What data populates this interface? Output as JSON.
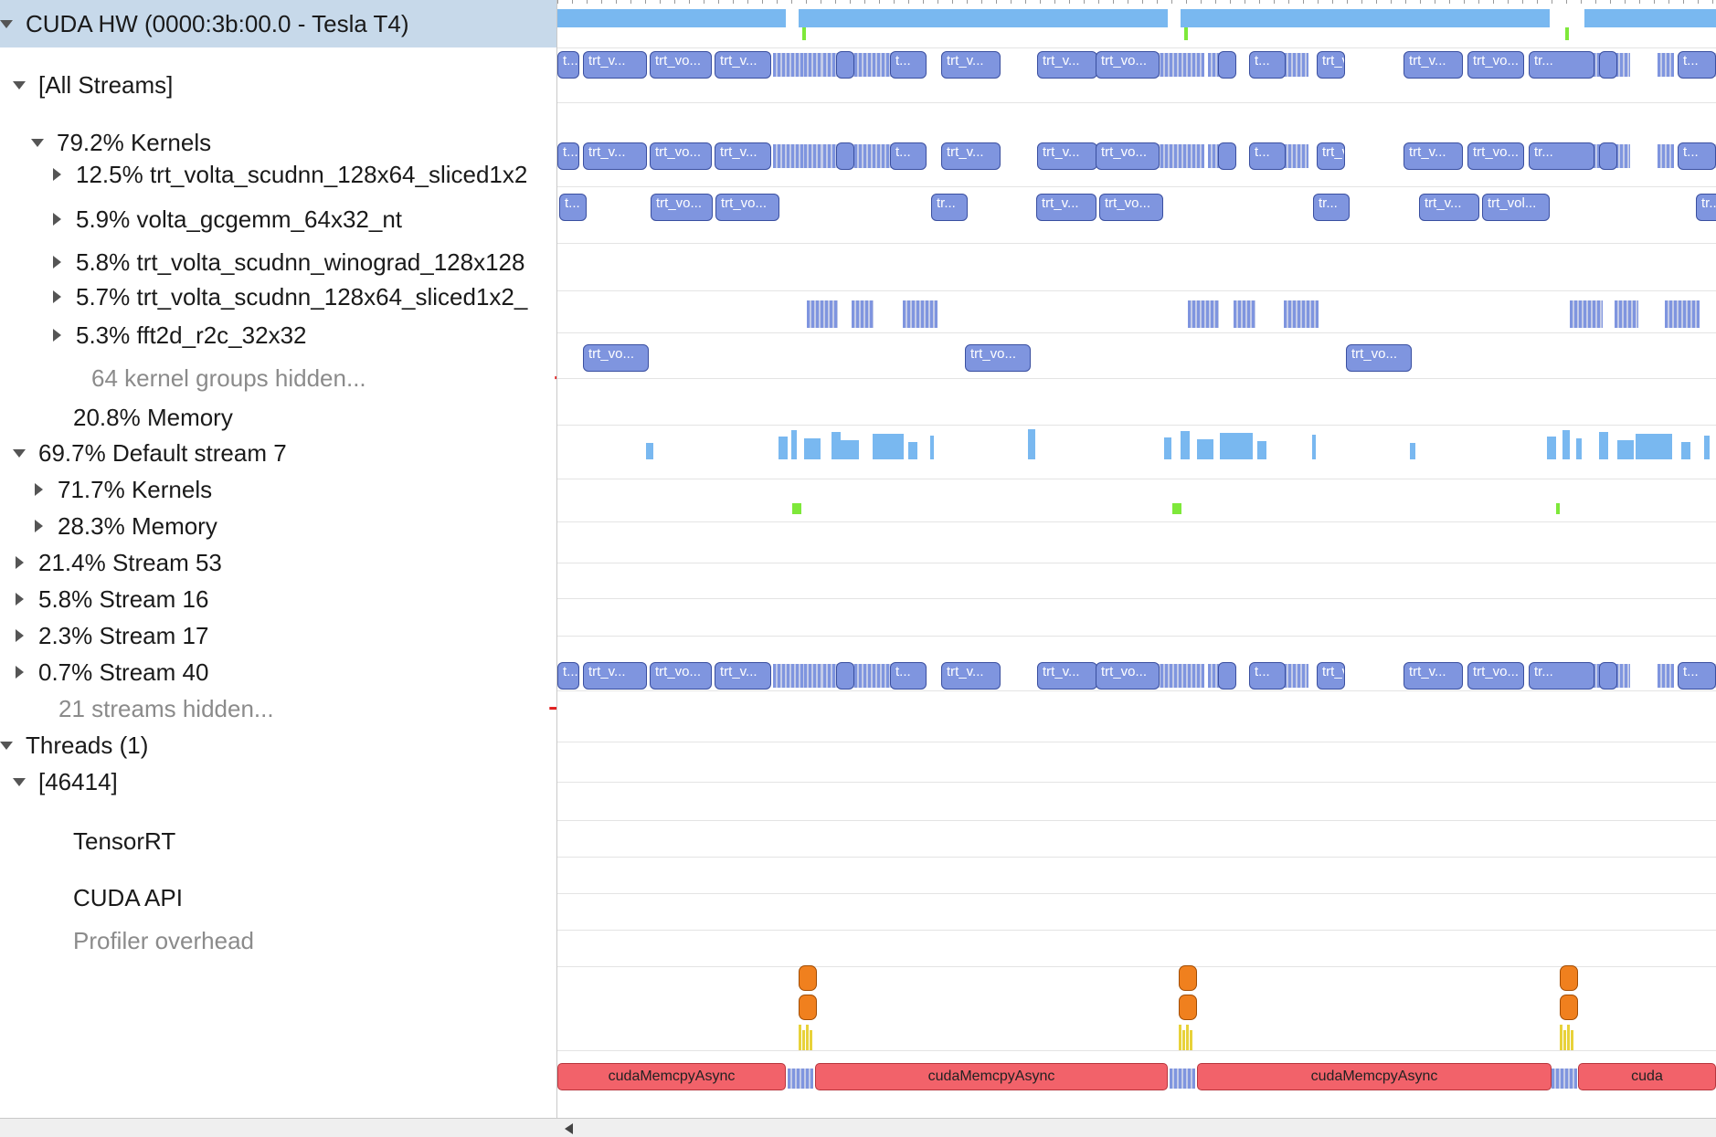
{
  "tree": {
    "rows": [
      {
        "label": "CUDA HW (0000:3b:00.0 - Tesla T4)",
        "arrow": "down",
        "indent": 0,
        "selected": true
      },
      {
        "label": "[All Streams]",
        "arrow": "down",
        "indent": 14
      },
      {
        "label": "79.2% Kernels",
        "arrow": "down",
        "indent": 34,
        "actions": "expand"
      },
      {
        "label": "12.5% trt_volta_scudnn_128x64_sliced1x2",
        "arrow": "right",
        "indent": 55
      },
      {
        "label": "5.9% volta_gcgemm_64x32_nt",
        "arrow": "right",
        "indent": 55
      },
      {
        "label": "5.8% trt_volta_scudnn_winograd_128x128",
        "arrow": "right",
        "indent": 55
      },
      {
        "label": "5.7% trt_volta_scudnn_128x64_sliced1x2_",
        "arrow": "right",
        "indent": 55
      },
      {
        "label": "5.3% fft2d_r2c_32x32",
        "arrow": "right",
        "indent": 55,
        "actions": "expand"
      },
      {
        "label": "64 kernel groups hidden...",
        "arrow": "none",
        "indent": 72,
        "dim": true,
        "actions": "minus-plus-expand"
      },
      {
        "label": "20.8% Memory",
        "arrow": "none",
        "indent": 52
      },
      {
        "label": "69.7% Default stream 7",
        "arrow": "down",
        "indent": 14
      },
      {
        "label": "71.7% Kernels",
        "arrow": "right",
        "indent": 35
      },
      {
        "label": "28.3% Memory",
        "arrow": "right",
        "indent": 35
      },
      {
        "label": "21.4% Stream 53",
        "arrow": "right",
        "indent": 14
      },
      {
        "label": "5.8% Stream 16",
        "arrow": "right",
        "indent": 14
      },
      {
        "label": "2.3% Stream 17",
        "arrow": "right",
        "indent": 14
      },
      {
        "label": "0.7% Stream 40",
        "arrow": "right",
        "indent": 14
      },
      {
        "label": "21 streams hidden...",
        "arrow": "none",
        "indent": 36,
        "dim": true,
        "actions": "minus-plus"
      },
      {
        "label": "Threads (1)",
        "arrow": "down",
        "indent": 0
      },
      {
        "label": "[46414]",
        "arrow": "down",
        "indent": 14
      },
      {
        "label": "TensorRT",
        "arrow": "none",
        "indent": 52
      },
      {
        "label": "CUDA API",
        "arrow": "none",
        "indent": 52
      },
      {
        "label": "Profiler overhead",
        "arrow": "none",
        "indent": 52,
        "dim": true
      }
    ],
    "action_symbols": {
      "minus": "−",
      "plus": "+",
      "expand": "↔"
    }
  },
  "timeline": {
    "kernel_row_labels": [
      "t...",
      "trt_v...",
      "trt_vo...",
      "trt_v...",
      "tr...",
      "t...",
      "trt_v...",
      "trt_v...",
      "trt_vo...",
      "tr...",
      "t...",
      "trt_v...",
      "trt_v...",
      "trt_vo...",
      "tr...",
      "t..."
    ],
    "lane_12_5_labels": [
      "t...",
      "trt_vo...",
      "trt_vo...",
      "tr...",
      "trt_v...",
      "trt_vo...",
      "tr...",
      "trt_v...",
      "trt_vol...",
      "tr..."
    ],
    "lane_5_7_labels": [
      "trt_vo...",
      "trt_vo...",
      "trt_vo..."
    ],
    "api_labels": [
      "cudaMemcpyAsync",
      "cudaMemcpyAsync",
      "cudaMemcpyAsync",
      "cuda"
    ],
    "colors": {
      "kernel": "#7f95df",
      "kernel_border": "#3a4fa0",
      "utilization": "#79b8f0",
      "memory": "#7ee83a",
      "api": "#f2626a",
      "tensorrt": "#f0801e",
      "yellow": "#e8d23a"
    }
  }
}
